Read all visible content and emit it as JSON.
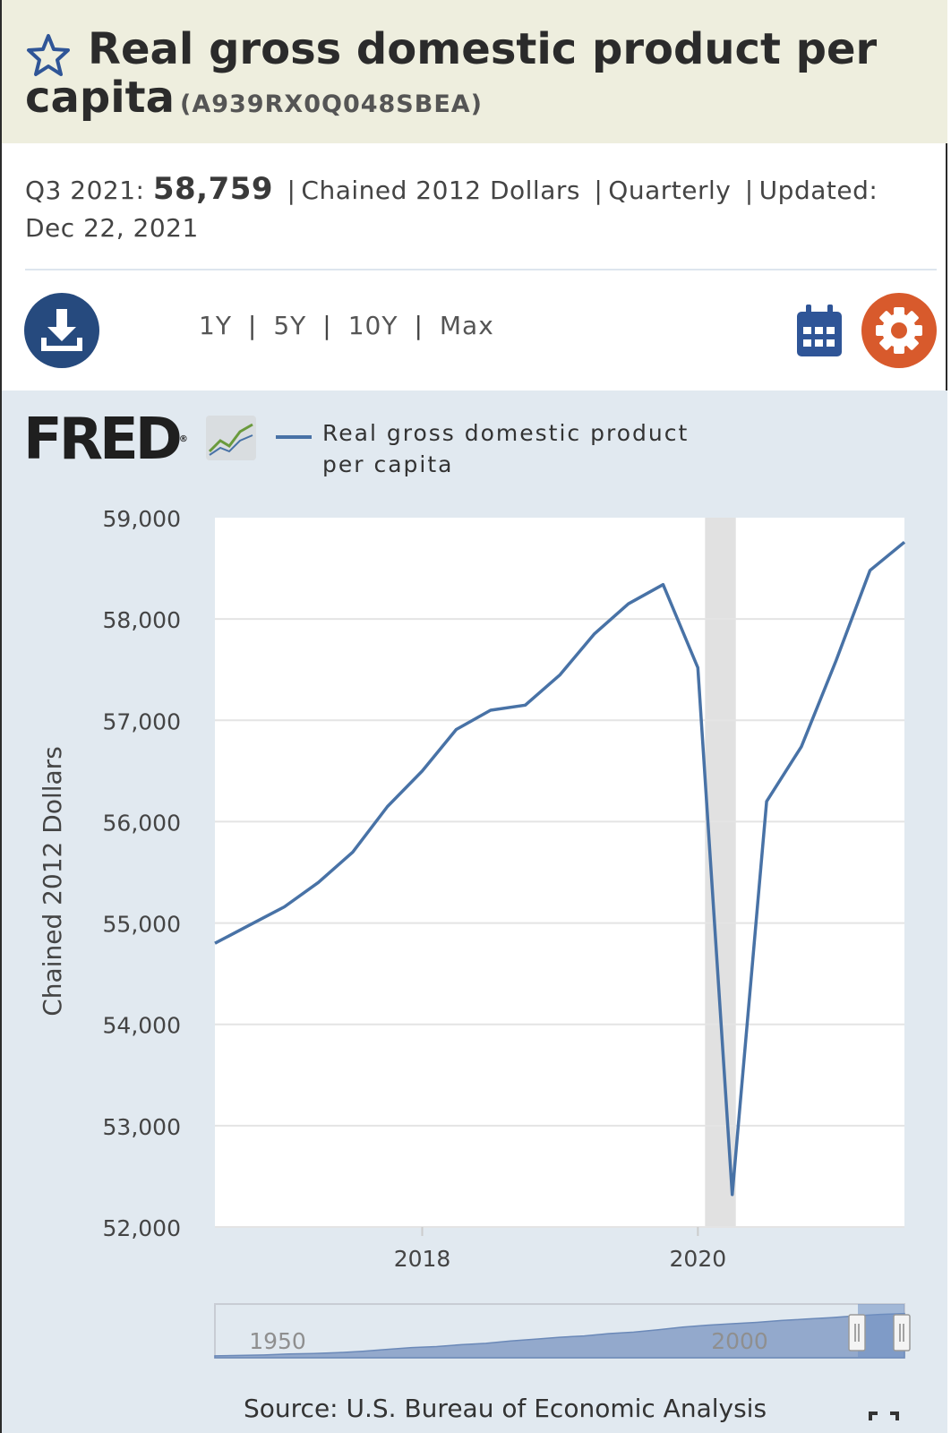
{
  "header": {
    "title": "Real gross domestic product per capita",
    "series_id": "(A939RX0Q048SBEA)",
    "favorite_icon": "star-outline-icon"
  },
  "meta": {
    "period": "Q3 2021:",
    "latest_value": "58,759",
    "units": "Chained 2012 Dollars",
    "frequency": "Quarterly",
    "updated_label": "Updated:",
    "updated_date": "Dec 22, 2021"
  },
  "toolbar": {
    "download_icon": "download-icon",
    "ranges": [
      "1Y",
      "5Y",
      "10Y",
      "Max"
    ],
    "calendar_icon": "calendar-icon",
    "settings_icon": "gear-icon"
  },
  "colors": {
    "title_bg": "#eeeede",
    "panel_bg": "#e1e9f0",
    "series": "#4872a6",
    "download_bg": "#264a7e",
    "settings_bg": "#d85a2c",
    "recession": "#e1e1e1"
  },
  "logo": {
    "text": "FRED",
    "reg": "®"
  },
  "chart_data": {
    "type": "line",
    "title": "",
    "ylabel": "Chained 2012 Dollars",
    "xlabel": "",
    "ylim": [
      52000,
      59000
    ],
    "yticks": [
      52000,
      53000,
      54000,
      55000,
      56000,
      57000,
      58000,
      59000
    ],
    "ytick_labels": [
      "52,000",
      "53,000",
      "54,000",
      "55,000",
      "56,000",
      "57,000",
      "58,000",
      "59,000"
    ],
    "xlim": [
      "2016-07-01",
      "2021-07-01"
    ],
    "xticks": [
      "2018-01-01",
      "2020-01-01"
    ],
    "xtick_labels": [
      "2018",
      "2020"
    ],
    "recession_shading": [
      "2020-01-01",
      "2020-04-01"
    ],
    "grid": true,
    "legend": "top-left",
    "series": [
      {
        "name": "Real gross domestic product per capita",
        "x": [
          "2016-07-01",
          "2016-10-01",
          "2017-01-01",
          "2017-04-01",
          "2017-07-01",
          "2017-10-01",
          "2018-01-01",
          "2018-04-01",
          "2018-07-01",
          "2018-10-01",
          "2019-01-01",
          "2019-04-01",
          "2019-07-01",
          "2019-10-01",
          "2020-01-01",
          "2020-04-01",
          "2020-07-01",
          "2020-10-01",
          "2021-01-01",
          "2021-04-01",
          "2021-07-01"
        ],
        "values": [
          54800,
          54980,
          55160,
          55400,
          55700,
          56150,
          56500,
          56910,
          57100,
          57150,
          57450,
          57850,
          58150,
          58340,
          57520,
          52320,
          56200,
          56740,
          57590,
          58480,
          58759
        ]
      }
    ]
  },
  "navigator": {
    "labels": [
      "1950",
      "2000"
    ]
  },
  "footer": {
    "source": "Source: U.S. Bureau of Economic Analysis",
    "fullscreen_icon": "fullscreen-icon"
  }
}
